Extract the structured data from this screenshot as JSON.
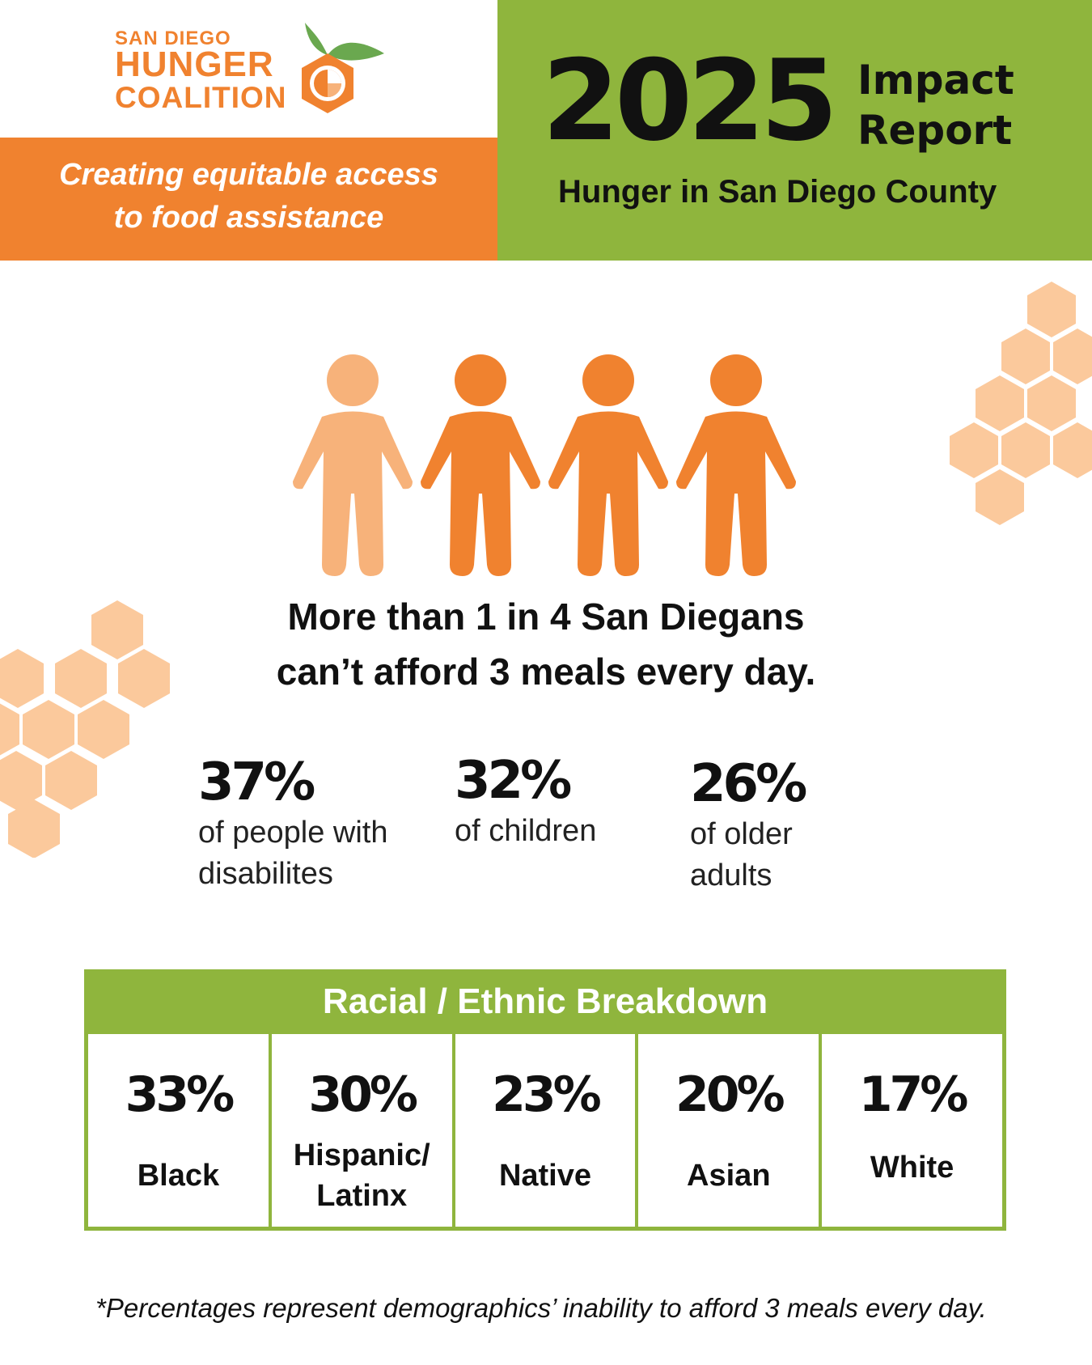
{
  "logo": {
    "line1": "SAN DIEGO",
    "line2": "HUNGER",
    "line3": "COALITION",
    "icon": "orange-hexagon-logo-icon"
  },
  "header": {
    "tagline_line1": "Creating equitable access",
    "tagline_line2": "to food assistance",
    "year": "2025",
    "report_line1": "Impact",
    "report_line2": "Report",
    "subtitle": "Hunger in San Diego County"
  },
  "people_icons": {
    "icon": "person-icon",
    "count": 4,
    "light_color": "#f7b27a",
    "dark_color": "#f0822f"
  },
  "headline": {
    "line1": "More than 1 in 4 San Diegans",
    "line2": "can’t afford 3 meals every day."
  },
  "stats": [
    {
      "value": "37%",
      "label_line1": "of people with",
      "label_line2": "disabilites"
    },
    {
      "value": "32%",
      "label_line1": "of children",
      "label_line2": ""
    },
    {
      "value": "26%",
      "label_line1": "of older",
      "label_line2": "adults"
    }
  ],
  "breakdown": {
    "title": "Racial / Ethnic Breakdown",
    "items": [
      {
        "value": "33%",
        "label_line1": "Black",
        "label_line2": ""
      },
      {
        "value": "30%",
        "label_line1": "Hispanic/",
        "label_line2": "Latinx"
      },
      {
        "value": "23%",
        "label_line1": "Native",
        "label_line2": ""
      },
      {
        "value": "20%",
        "label_line1": "Asian",
        "label_line2": ""
      },
      {
        "value": "17%",
        "label_line1": "White",
        "label_line2": ""
      }
    ]
  },
  "footnote": "*Percentages represent demographics’ inability to afford 3 meals every day.",
  "colors": {
    "orange": "#f0822f",
    "green": "#8fb53d",
    "hex_decoration": "#fbc99c"
  }
}
